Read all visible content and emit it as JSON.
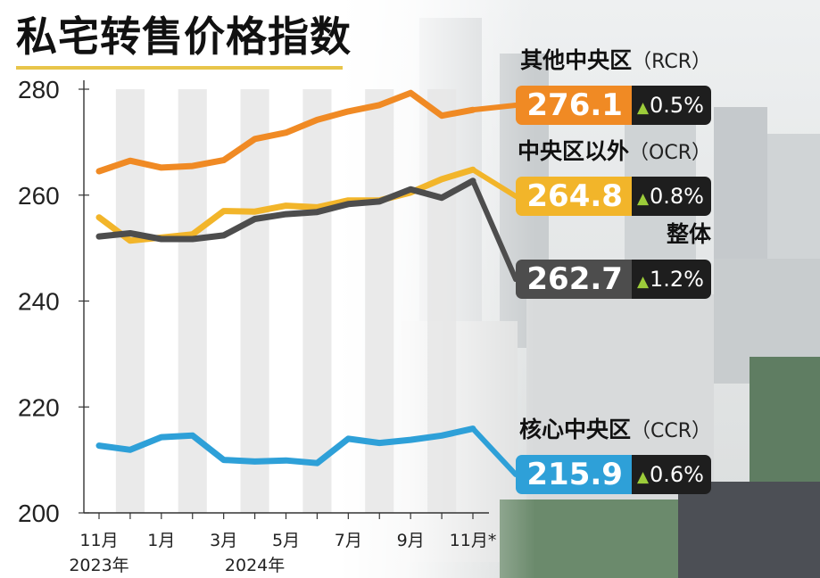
{
  "title": "私宅转售价格指数",
  "chart_data": {
    "type": "line",
    "ylim": [
      200,
      280
    ],
    "yticks": [
      "200",
      "220",
      "240",
      "260",
      "280"
    ],
    "x": [
      "2023-11",
      "2023-12",
      "2024-01",
      "2024-02",
      "2024-03",
      "2024-04",
      "2024-05",
      "2024-06",
      "2024-07",
      "2024-08",
      "2024-09",
      "2024-10",
      "2024-11"
    ],
    "xticks": [
      "11月",
      "1月",
      "3月",
      "5月",
      "7月",
      "9月",
      "11月*"
    ],
    "year_labels": [
      "2023年",
      "2024年"
    ],
    "grid": "alternating vertical bands",
    "series": [
      {
        "name": "其他中央区",
        "code": "（RCR）",
        "color": "#f08a24",
        "values": [
          264.5,
          266.5,
          265.2,
          265.5,
          266.6,
          270.6,
          271.8,
          274.2,
          275.8,
          277.0,
          279.3,
          275.0,
          276.1
        ],
        "label_value": "276.1",
        "label_change": "0.5%"
      },
      {
        "name": "中央区以外",
        "code": "（OCR）",
        "color": "#f2b52a",
        "values": [
          255.8,
          251.4,
          252.0,
          252.6,
          257.0,
          256.9,
          258.0,
          257.7,
          259.0,
          259.0,
          260.5,
          263.0,
          264.8
        ],
        "label_value": "264.8",
        "label_change": "0.8%"
      },
      {
        "name": "整体",
        "code": "",
        "color": "#4d4d4d",
        "values": [
          252.2,
          252.8,
          251.7,
          251.7,
          252.4,
          255.5,
          256.4,
          256.8,
          258.3,
          258.8,
          261.1,
          259.5,
          262.7
        ],
        "label_value": "262.7",
        "label_change": "1.2%"
      },
      {
        "name": "核心中央区",
        "code": "（CCR）",
        "color": "#2ea0d8",
        "values": [
          212.7,
          211.9,
          214.3,
          214.6,
          210.0,
          209.7,
          209.9,
          209.4,
          214.0,
          213.2,
          213.8,
          214.6,
          215.9
        ],
        "label_value": "215.9",
        "label_change": "0.6%"
      }
    ]
  }
}
